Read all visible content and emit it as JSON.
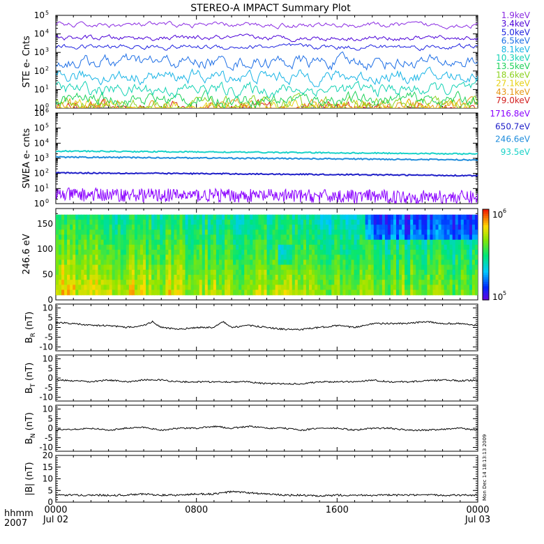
{
  "title": "STEREO-A IMPACT Summary Plot",
  "timestamp_note": "Mon Dec 14 18:13:13 2009",
  "time_axis": {
    "corner_labels": [
      "hhmm",
      "2007"
    ],
    "ticks": [
      {
        "hhmm": "0000",
        "date": "Jul 02",
        "hours": 0
      },
      {
        "hhmm": "0800",
        "date": "",
        "hours": 8
      },
      {
        "hhmm": "1600",
        "date": "",
        "hours": 16
      },
      {
        "hhmm": "0000",
        "date": "Jul 03",
        "hours": 24
      }
    ],
    "xlim": [
      0,
      24
    ]
  },
  "chart_data": [
    {
      "type": "line",
      "ylabel": "STE e- Cnts",
      "yscale": "log",
      "ylim": [
        1,
        100000
      ],
      "yticks": [
        {
          "v": 1,
          "label": "10",
          "exp": "0"
        },
        {
          "v": 10,
          "label": "10",
          "exp": "1"
        },
        {
          "v": 100,
          "label": "10",
          "exp": "2"
        },
        {
          "v": 1000,
          "label": "10",
          "exp": "3"
        },
        {
          "v": 10000,
          "label": "10",
          "exp": "4"
        },
        {
          "v": 100000,
          "label": "10",
          "exp": "5"
        }
      ],
      "series": [
        {
          "name": "1.9keV",
          "color": "#8a2be2",
          "level": 30000
        },
        {
          "name": "3.4keV",
          "color": "#4b00d8",
          "level": 6000
        },
        {
          "name": "5.0keV",
          "color": "#1e22e0",
          "level": 2000
        },
        {
          "name": "6.5keV",
          "color": "#1e6fe6",
          "level": 300
        },
        {
          "name": "8.1keV",
          "color": "#19b4e6",
          "level": 50
        },
        {
          "name": "10.3keV",
          "color": "#14d2b4",
          "level": 10
        },
        {
          "name": "13.5keV",
          "color": "#1ed25a",
          "level": 3
        },
        {
          "name": "18.6keV",
          "color": "#8cd21e",
          "level": 1.5
        },
        {
          "name": "27.1keV",
          "color": "#e6d214",
          "level": 1.2
        },
        {
          "name": "43.1keV",
          "color": "#e69614",
          "level": 1.1
        },
        {
          "name": "79.0keV",
          "color": "#d21e1e",
          "level": 1.0
        }
      ]
    },
    {
      "type": "line",
      "ylabel": "SWEA e- cnts",
      "yscale": "log",
      "ylim": [
        1,
        1000000
      ],
      "yticks": [
        {
          "v": 1,
          "label": "10",
          "exp": "0"
        },
        {
          "v": 10,
          "label": "10",
          "exp": "1"
        },
        {
          "v": 100,
          "label": "10",
          "exp": "2"
        },
        {
          "v": 1000,
          "label": "10",
          "exp": "3"
        },
        {
          "v": 10000,
          "label": "10",
          "exp": "4"
        },
        {
          "v": 100000,
          "label": "10",
          "exp": "5"
        },
        {
          "v": 1000000,
          "label": "10",
          "exp": "6"
        }
      ],
      "series": [
        {
          "name": "1716.8eV",
          "color": "#8a00ff",
          "level": 4
        },
        {
          "name": "650.7eV",
          "color": "#1e1ec8",
          "level": 110
        },
        {
          "name": "246.6eV",
          "color": "#1e8cdc",
          "level": 1200
        },
        {
          "name": "93.5eV",
          "color": "#19d2c8",
          "level": 3000
        }
      ]
    },
    {
      "type": "heatmap",
      "ylabel": "246.6 eV",
      "ylim": [
        0,
        180
      ],
      "yticks": [
        0,
        50,
        100,
        150
      ],
      "colorbar": {
        "label_top": "10",
        "exp_top": "6",
        "label_bottom": "10",
        "exp_bottom": "5"
      }
    },
    {
      "type": "line",
      "ylabel": "B",
      "ylabel_sub": "R",
      "ylabel_unit": "(nT)",
      "ylim": [
        -12,
        12
      ],
      "yticks": [
        -10,
        -5,
        0,
        5,
        10
      ],
      "x": [
        0,
        1,
        2,
        3,
        4,
        5,
        5.5,
        6,
        7,
        8,
        9,
        9.5,
        10,
        11,
        12,
        13,
        14,
        15,
        16,
        17,
        18,
        19,
        20,
        21,
        22,
        23,
        24
      ],
      "values": [
        2.5,
        2,
        1,
        1,
        0,
        1,
        3,
        0,
        -1,
        0,
        0,
        3,
        0,
        1,
        0,
        -1,
        -1,
        0,
        1,
        0,
        2,
        2,
        2,
        3,
        2,
        2,
        1
      ]
    },
    {
      "type": "line",
      "ylabel": "B",
      "ylabel_sub": "T",
      "ylabel_unit": "(nT)",
      "ylim": [
        -12,
        12
      ],
      "yticks": [
        -10,
        -5,
        0,
        5,
        10
      ],
      "x": [
        0,
        1,
        2,
        3,
        4,
        5,
        6,
        7,
        8,
        9,
        10,
        11,
        12,
        13,
        14,
        15,
        16,
        17,
        18,
        19,
        20,
        21,
        22,
        23,
        24
      ],
      "values": [
        -1,
        -1.5,
        -2,
        -1,
        -2,
        -1,
        -1,
        -2,
        -2,
        -2,
        -2,
        -2,
        -3,
        -3,
        -3,
        -2,
        -2,
        -2,
        -1,
        -2,
        -2,
        -1.5,
        -1,
        -1.5,
        -1
      ]
    },
    {
      "type": "line",
      "ylabel": "B",
      "ylabel_sub": "N",
      "ylabel_unit": "(nT)",
      "ylim": [
        -12,
        12
      ],
      "yticks": [
        -10,
        -5,
        0,
        5,
        10
      ],
      "x": [
        0,
        1,
        2,
        3,
        4,
        5,
        6,
        7,
        8,
        9,
        10,
        11,
        12,
        13,
        14,
        15,
        16,
        17,
        18,
        19,
        20,
        21,
        22,
        23,
        24
      ],
      "values": [
        -1,
        -0.5,
        0,
        -1,
        0,
        0.5,
        -1,
        0,
        0,
        1,
        0,
        1,
        0,
        0,
        -1,
        0,
        0,
        -1,
        0,
        0,
        -1,
        -1,
        -0.5,
        0,
        -1
      ]
    },
    {
      "type": "line",
      "ylabel": "|B| (nT)",
      "ylim": [
        0,
        20
      ],
      "yticks": [
        0,
        5,
        10,
        15,
        20
      ],
      "x": [
        0,
        1,
        2,
        3,
        4,
        5,
        6,
        7,
        8,
        9,
        10,
        11,
        12,
        13,
        14,
        15,
        16,
        17,
        18,
        19,
        20,
        21,
        22,
        23,
        24
      ],
      "values": [
        3,
        3,
        3,
        3,
        3,
        3.5,
        3,
        3,
        3.5,
        3.5,
        4.5,
        4,
        3.5,
        3,
        3,
        2.5,
        3,
        3,
        3,
        3,
        3,
        3,
        3,
        3,
        3
      ]
    }
  ]
}
